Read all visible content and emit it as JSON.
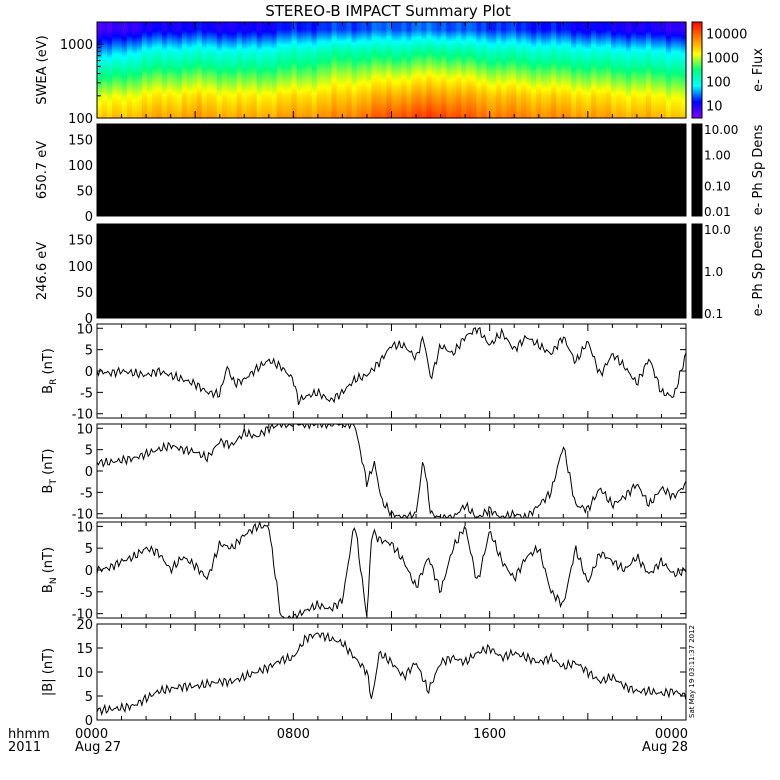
{
  "title": "STEREO-B IMPACT Summary Plot",
  "time_axis": {
    "unit_label_line1": "hhmm",
    "unit_label_line2": "2011",
    "ticks": [
      {
        "label": "0000",
        "sublabel": "Aug 27",
        "hour": 0
      },
      {
        "label": "0800",
        "sublabel": "",
        "hour": 8
      },
      {
        "label": "1600",
        "sublabel": "",
        "hour": 16
      },
      {
        "label": "0000",
        "sublabel": "Aug 28",
        "hour": 24
      }
    ],
    "range_hours": [
      0,
      24
    ]
  },
  "timestamp": "Sat May 19 03:11:37 2012",
  "colors": {
    "spectrogram_scale": [
      "#8000ff",
      "#0000ff",
      "#00ffff",
      "#00ff80",
      "#ffff00",
      "#ff8000",
      "#ff0000"
    ],
    "line": "#000000",
    "background": "#ffffff",
    "empty_panel": "#000000"
  },
  "chart_data": [
    {
      "type": "heatmap",
      "ylabel": "SWEA (eV)",
      "yscale": "log",
      "ylim": [
        100,
        2000
      ],
      "yticks": [
        "1000",
        "100"
      ],
      "colorbar": {
        "label": "e- Flux",
        "scale": "log",
        "ticks": [
          "10000",
          "1000",
          "100",
          "10"
        ],
        "range": [
          3,
          30000
        ]
      },
      "description_values": {
        "energies_eV": [
          100,
          200,
          400,
          800,
          1600
        ],
        "hours": [
          0,
          2,
          4,
          6,
          8,
          10,
          12,
          14,
          16,
          18,
          20,
          22,
          24
        ],
        "log10_flux": [
          [
            3.4,
            3.6,
            3.7,
            3.6,
            3.7,
            3.8,
            4.1,
            4.2,
            3.9,
            3.8,
            3.7,
            3.6,
            3.5
          ],
          [
            3.0,
            3.2,
            3.3,
            3.2,
            3.3,
            3.4,
            3.6,
            3.7,
            3.5,
            3.4,
            3.3,
            3.2,
            3.1
          ],
          [
            2.3,
            2.6,
            2.7,
            2.6,
            2.7,
            2.9,
            3.0,
            3.1,
            2.9,
            2.8,
            2.7,
            2.6,
            2.5
          ],
          [
            1.5,
            1.9,
            2.0,
            1.9,
            2.1,
            2.3,
            2.3,
            2.4,
            2.2,
            2.1,
            2.0,
            1.9,
            1.8
          ],
          [
            0.7,
            1.0,
            1.1,
            1.0,
            1.2,
            1.3,
            1.4,
            1.4,
            1.3,
            1.2,
            1.1,
            1.0,
            0.9
          ]
        ]
      }
    },
    {
      "type": "heatmap",
      "ylabel": "650.7 eV",
      "ylim": [
        0,
        180
      ],
      "yticks": [
        "150",
        "100",
        "50",
        "0"
      ],
      "colorbar": {
        "label": "e- Ph Sp Dens",
        "scale": "log",
        "ticks": [
          "10.00",
          "1.00",
          "0.10",
          "0.01"
        ],
        "range": [
          0.01,
          10
        ]
      },
      "fill": "no data (black)"
    },
    {
      "type": "heatmap",
      "ylabel": "246.6 eV",
      "ylim": [
        0,
        180
      ],
      "yticks": [
        "150",
        "100",
        "50",
        "0"
      ],
      "colorbar": {
        "label": "e- Ph Sp Dens",
        "scale": "log",
        "ticks": [
          "10.0",
          "1.0",
          "0.1"
        ],
        "range": [
          0.1,
          10
        ]
      },
      "fill": "no data (black)"
    },
    {
      "type": "line",
      "ylabel": "B",
      "ylabel_sub": "R",
      "ylabel_unit": "(nT)",
      "ylim": [
        -11,
        11
      ],
      "yticks": [
        "10",
        "5",
        "0",
        "-5",
        "-10"
      ],
      "x_hours": [
        0,
        0.5,
        1,
        1.5,
        2,
        2.5,
        3,
        3.5,
        4,
        4.5,
        5,
        5.3,
        5.6,
        6,
        6.5,
        7,
        7.5,
        8,
        8.2,
        8.5,
        9,
        9.5,
        10,
        10.5,
        11,
        11.5,
        12,
        12.5,
        13,
        13.3,
        13.6,
        14,
        14.5,
        15,
        15.5,
        16,
        16.5,
        17,
        17.5,
        18,
        18.5,
        19,
        19.5,
        20,
        20.5,
        21,
        21.5,
        22,
        22.5,
        23,
        23.5,
        24
      ],
      "y": [
        0,
        -0.5,
        0,
        -0.5,
        -1,
        0,
        -1,
        -2,
        -3,
        -5,
        -5.5,
        1,
        -3,
        -2,
        0.5,
        2.5,
        1,
        -2,
        -7,
        -6,
        -5,
        -7,
        -5,
        -2,
        -1,
        2,
        6,
        6,
        3,
        8,
        -2,
        6,
        4,
        8,
        10,
        6,
        9,
        5,
        8,
        6,
        4,
        8,
        2,
        7,
        -1,
        4,
        1,
        -3,
        3,
        -5,
        -6,
        4
      ]
    },
    {
      "type": "line",
      "ylabel": "B",
      "ylabel_sub": "T",
      "ylabel_unit": "(nT)",
      "ylim": [
        -11,
        11
      ],
      "yticks": [
        "10",
        "5",
        "0",
        "-5",
        "-10"
      ],
      "x_hours": [
        0,
        0.5,
        1,
        1.5,
        2,
        2.5,
        3,
        3.5,
        4,
        4.5,
        5,
        5.5,
        6,
        6.5,
        7,
        7.5,
        8,
        8.5,
        9,
        9.5,
        10,
        10.5,
        11,
        11.3,
        11.6,
        12,
        12.5,
        13,
        13.3,
        13.6,
        14,
        14.5,
        15,
        15.5,
        16,
        16.5,
        17,
        17.5,
        18,
        18.5,
        19,
        19.5,
        20,
        20.5,
        21,
        21.5,
        22,
        22.5,
        23,
        23.5,
        24
      ],
      "y": [
        2,
        2,
        2.5,
        3,
        4,
        5,
        6,
        5,
        4.5,
        3,
        7,
        6,
        9,
        8,
        10,
        11,
        11,
        11,
        11,
        11,
        11,
        11,
        -3,
        2,
        -7,
        -10,
        -11,
        -10,
        3,
        -10,
        -11,
        -11,
        -8,
        -11,
        -9,
        -11,
        -10,
        -11,
        -8,
        -5,
        6,
        -8,
        -9,
        -4,
        -8,
        -6,
        -3,
        -8,
        -4,
        -6,
        -3
      ]
    },
    {
      "type": "line",
      "ylabel": "B",
      "ylabel_sub": "N",
      "ylabel_unit": "(nT)",
      "ylim": [
        -11,
        11
      ],
      "yticks": [
        "10",
        "5",
        "0",
        "-5",
        "-10"
      ],
      "x_hours": [
        0,
        0.5,
        1,
        1.5,
        2,
        2.5,
        3,
        3.5,
        4,
        4.5,
        5,
        5.5,
        6,
        6.5,
        7,
        7.5,
        8,
        8.3,
        8.6,
        9,
        9.5,
        10,
        10.5,
        11,
        11.2,
        11.5,
        12,
        12.5,
        13,
        13.5,
        14,
        14.5,
        15,
        15.5,
        16,
        16.5,
        17,
        17.5,
        18,
        18.5,
        19,
        19.5,
        20,
        20.5,
        21,
        21.5,
        22,
        22.5,
        23,
        23.5,
        24
      ],
      "y": [
        0,
        0.5,
        2,
        3,
        5,
        4,
        0,
        3,
        1,
        -2,
        6,
        5,
        8,
        10,
        10,
        -11,
        -11,
        -10,
        -9,
        -8,
        -9,
        -7,
        11,
        -11,
        9,
        7,
        6,
        2,
        -4,
        3,
        -5,
        5,
        10,
        -3,
        9,
        2,
        -2,
        3,
        5,
        -5,
        -8,
        5,
        -3,
        4,
        2,
        0,
        3,
        -1,
        2,
        -1,
        0
      ]
    },
    {
      "type": "line",
      "ylabel": "|B|",
      "ylabel_unit": "(nT)",
      "ylim": [
        0,
        20
      ],
      "yticks": [
        "20",
        "15",
        "10",
        "5",
        "0"
      ],
      "x_hours": [
        0,
        0.5,
        1,
        1.5,
        2,
        2.5,
        3,
        3.5,
        4,
        4.5,
        5,
        5.5,
        6,
        6.5,
        7,
        7.5,
        8,
        8.5,
        9,
        9.5,
        10,
        10.5,
        11,
        11.2,
        11.5,
        12,
        12.5,
        13,
        13.5,
        14,
        14.5,
        15,
        15.5,
        16,
        16.5,
        17,
        17.5,
        18,
        18.5,
        19,
        19.5,
        20,
        20.5,
        21,
        21.5,
        22,
        22.5,
        23,
        23.5,
        24
      ],
      "y": [
        2,
        2.2,
        2.5,
        3,
        4.5,
        6,
        6.5,
        7,
        7,
        7.5,
        8,
        8,
        9,
        10,
        11,
        12.5,
        13,
        17,
        18,
        17,
        16,
        13,
        10,
        4,
        14,
        12,
        9,
        12,
        6,
        12,
        13,
        12,
        14,
        15,
        13,
        14,
        13,
        12,
        13,
        11,
        12,
        10,
        8,
        9,
        7,
        6,
        6,
        5.5,
        6,
        5
      ]
    }
  ]
}
